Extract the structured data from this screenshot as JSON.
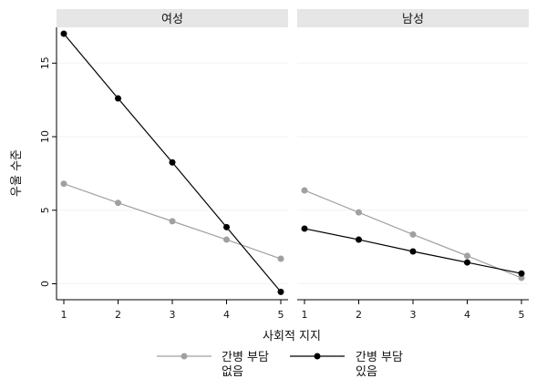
{
  "chart_data": {
    "type": "line",
    "ylabel": "우울 수준",
    "xlabel": "사회적 지지",
    "x": [
      1,
      2,
      3,
      4,
      5
    ],
    "xlim": [
      0.85,
      5.15
    ],
    "ylim": [
      -1,
      17.5
    ],
    "yticks": [
      0,
      5,
      10,
      15
    ],
    "grid": false,
    "legend_position": "bottom",
    "panels": [
      {
        "title": "여성",
        "series": [
          {
            "name": "간병 부담 없음",
            "color": "#a0a0a0",
            "values": [
              6.8,
              5.5,
              4.25,
              3.0,
              1.7
            ]
          },
          {
            "name": "간병 부담 있음",
            "color": "#000000",
            "values": [
              17.0,
              12.6,
              8.25,
              3.85,
              -0.55
            ]
          }
        ]
      },
      {
        "title": "남성",
        "series": [
          {
            "name": "간병 부담 없음",
            "color": "#a0a0a0",
            "values": [
              6.35,
              4.85,
              3.35,
              1.9,
              0.4
            ]
          },
          {
            "name": "간병 부담 있음",
            "color": "#000000",
            "values": [
              3.75,
              3.0,
              2.2,
              1.45,
              0.7
            ]
          }
        ]
      }
    ],
    "legend": [
      {
        "line1": "간병 부담",
        "line2": "없음",
        "color": "#a0a0a0"
      },
      {
        "line1": "간병 부담",
        "line2": "있음",
        "color": "#000000"
      }
    ]
  }
}
